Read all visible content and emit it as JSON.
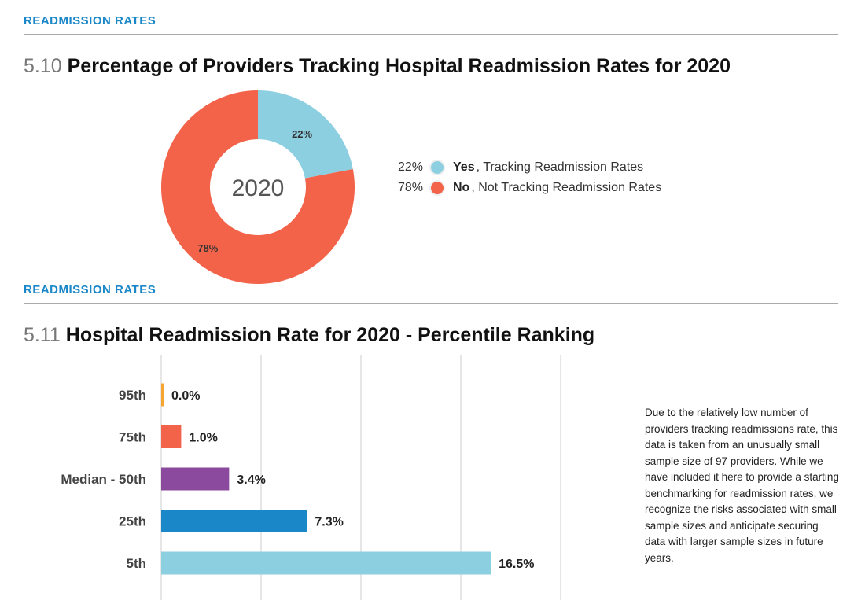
{
  "section1": {
    "label": "READMISSION RATES",
    "number": "5.10",
    "title": "Percentage of Providers Tracking Hospital Readmission Rates for 2020"
  },
  "section2": {
    "label": "READMISSION RATES",
    "number": "5.11",
    "title": "Hospital Readmission Rate for 2020 - Percentile Ranking"
  },
  "note": "Due to the relatively low number of providers tracking readmissions rate, this data is taken from an unusually small sample size of 97 providers. While we have included it here to provide a starting benchmarking for readmission rates, we recognize the risks associated with small sample sizes and anticipate securing data with larger sample sizes in future years.",
  "chart_data": [
    {
      "type": "pie",
      "style": "donut",
      "center_label": "2020",
      "slices": [
        {
          "pct_label": "22%",
          "value": 22,
          "bold": "Yes",
          "label": ", Tracking Readmission Rates",
          "color": "#8ccfe0"
        },
        {
          "pct_label": "78%",
          "value": 78,
          "bold": "No",
          "label": ", Not Tracking Readmission Rates",
          "color": "#f26349"
        }
      ],
      "legend": "right"
    },
    {
      "type": "bar",
      "orientation": "horizontal",
      "categories": [
        "95th",
        "75th",
        "Median - 50th",
        "25th",
        "5th"
      ],
      "values": [
        0.0,
        1.0,
        3.4,
        7.3,
        16.5
      ],
      "data_labels": [
        "0.0%",
        "1.0%",
        "3.4%",
        "7.3%",
        "16.5%"
      ],
      "colors": [
        "#f7a531",
        "#f26349",
        "#8b4a9e",
        "#1a87c8",
        "#8ccfe0"
      ],
      "xlim": [
        0,
        20
      ],
      "grid": true
    }
  ]
}
